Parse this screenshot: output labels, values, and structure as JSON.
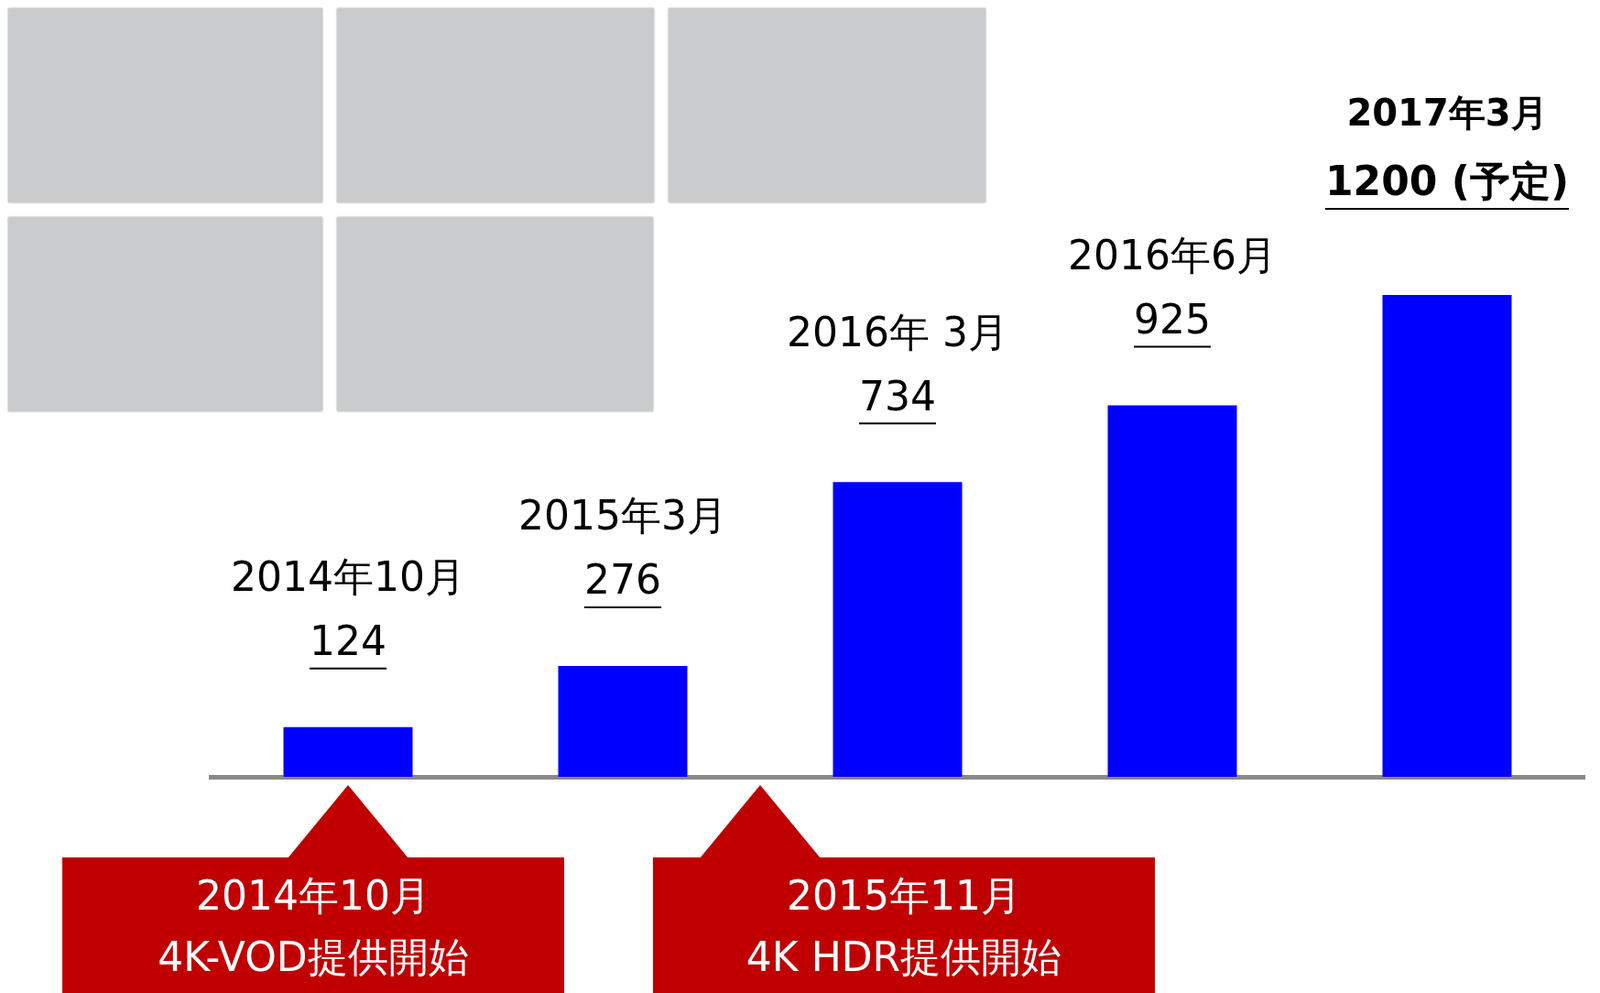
{
  "chart_data": {
    "type": "bar",
    "categories": [
      "2014年10月",
      "2015年3月",
      "2016年 3月",
      "2016年6月",
      "2017年3月"
    ],
    "values": [
      124,
      276,
      734,
      925,
      1200
    ],
    "value_labels": [
      "124",
      "276",
      "734",
      "925",
      "1200 (予定)"
    ],
    "data_labels": true,
    "color": "#0000ff",
    "ylim": [
      0,
      1200
    ],
    "tick_labels": false,
    "grid": false,
    "annotations": [
      {
        "x": 0,
        "text": [
          "2014年10月",
          "4K-VOD提供開始"
        ]
      },
      {
        "x": 1.5,
        "text": [
          "2015年11月",
          "4K HDR提供開始"
        ]
      }
    ]
  }
}
